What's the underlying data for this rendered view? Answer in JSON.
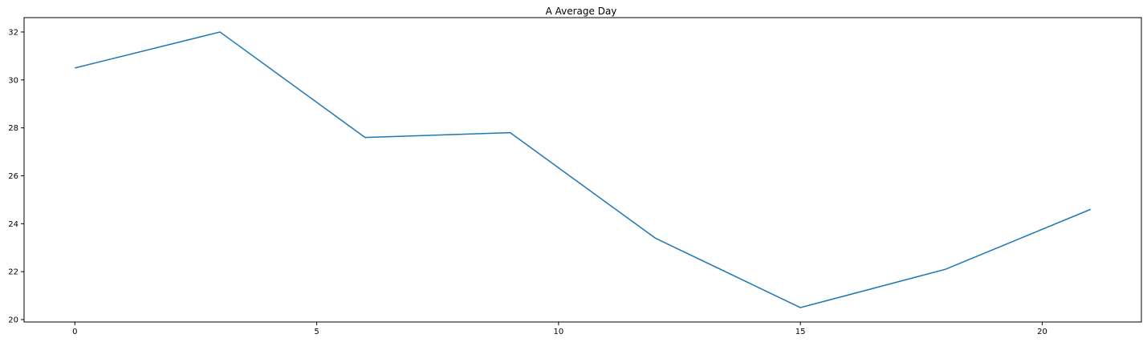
{
  "chart_data": {
    "type": "line",
    "title": "A Average Day",
    "xlabel": "",
    "ylabel": "",
    "x": [
      0,
      3,
      6,
      9,
      12,
      15,
      18,
      21
    ],
    "series": [
      {
        "values": [
          30.5,
          32.0,
          27.6,
          27.8,
          23.4,
          20.5,
          22.1,
          24.6
        ],
        "color": "#1f77b4"
      }
    ],
    "xlim": [
      -1.05,
      22.05
    ],
    "ylim": [
      19.9,
      32.6
    ],
    "xticks": [
      0,
      5,
      10,
      15,
      20
    ],
    "yticks": [
      20,
      22,
      24,
      26,
      28,
      30,
      32
    ],
    "grid": false,
    "legend": false
  }
}
